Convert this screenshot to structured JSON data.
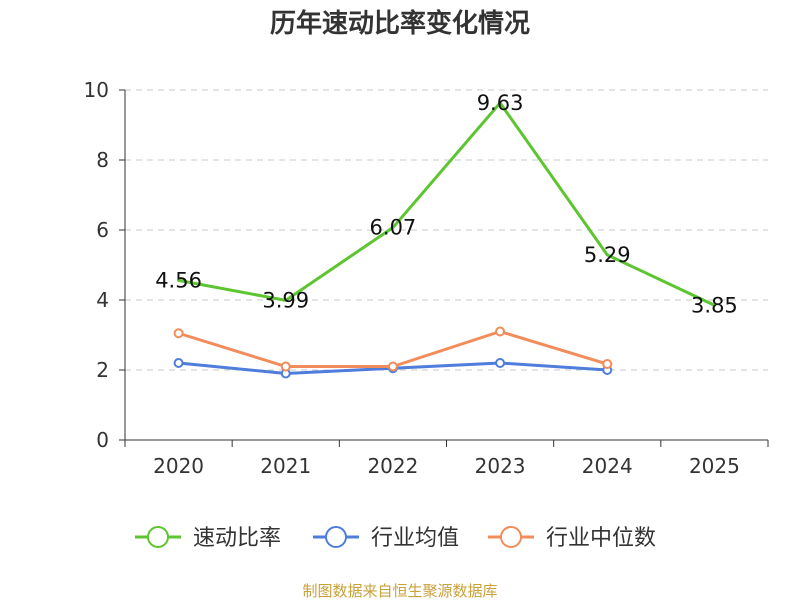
{
  "chart_data": {
    "type": "line",
    "title": "历年速动比率变化情况",
    "categories": [
      "2020",
      "2021",
      "2022",
      "2023",
      "2024",
      "2025"
    ],
    "ylim": [
      0,
      10
    ],
    "yticks": [
      0,
      2,
      4,
      6,
      8,
      10
    ],
    "grid": true,
    "legend_position": "bottom",
    "series": [
      {
        "name": "速动比率",
        "color": "#5cc52f",
        "values": [
          4.56,
          3.99,
          6.07,
          9.63,
          5.29,
          3.85
        ],
        "labels": [
          "4.56",
          "3.99",
          "6.07",
          "9.63",
          "5.29",
          "3.85"
        ],
        "markers": false
      },
      {
        "name": "行业均值",
        "color": "#4f7ddb",
        "values": [
          2.2,
          1.9,
          2.05,
          2.2,
          2.0,
          null
        ],
        "markers": true
      },
      {
        "name": "行业中位数",
        "color": "#f28c5a",
        "values": [
          3.05,
          2.1,
          2.1,
          3.1,
          2.17,
          null
        ],
        "markers": true
      }
    ],
    "source": "制图数据来自恒生聚源数据库"
  }
}
